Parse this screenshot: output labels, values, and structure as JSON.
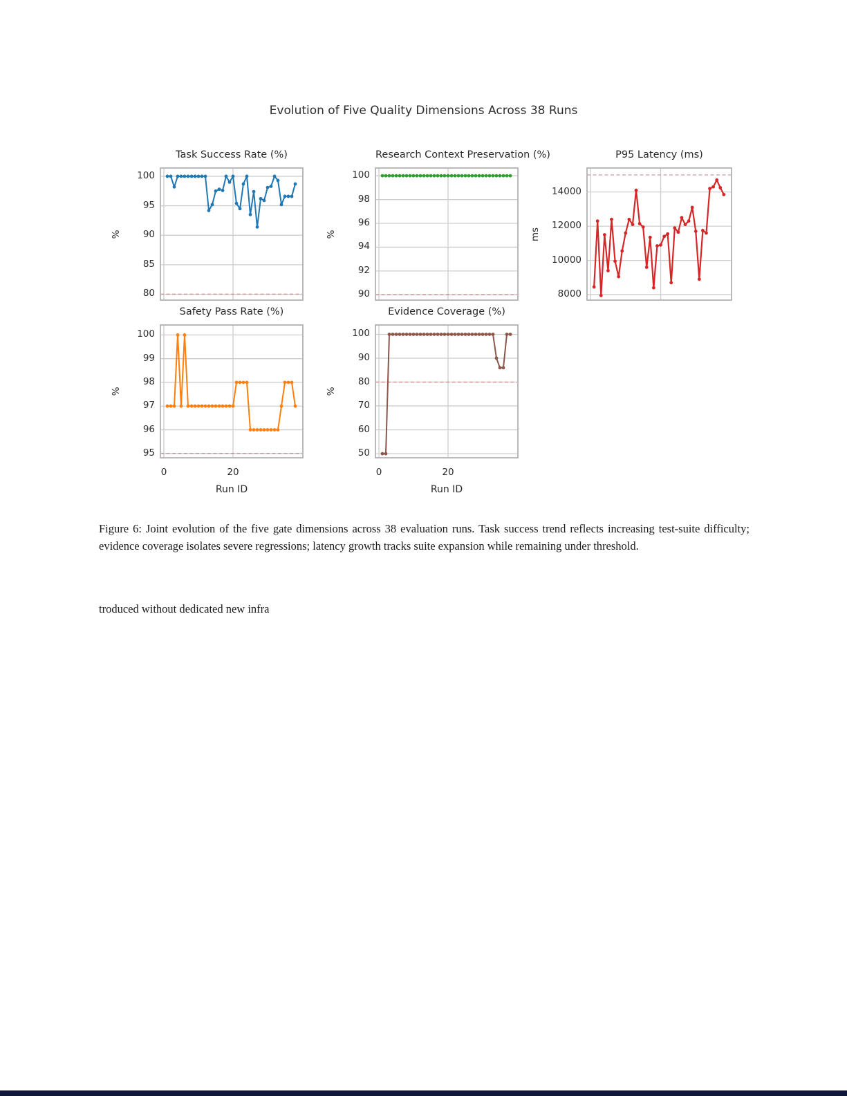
{
  "figure_title": "Evolution of Five Quality Dimensions Across 38 Runs",
  "caption": {
    "text": "Figure 6: Joint evolution of the five gate dimensions across 38 evaluation runs. Task success trend reflects increasing test-suite difficulty; evidence coverage isolates severe regressions; latency growth tracks suite expansion while remaining under threshold."
  },
  "body_fragment": "troduced without dedicated new infra",
  "footer_bar_color": "#10173a",
  "chart_data": [
    {
      "id": "task-success",
      "type": "line",
      "title": "Task Success Rate (%)",
      "ylabel": "%",
      "xlabel": null,
      "color": "#1f77b4",
      "threshold": 80,
      "threshold_color": "#c98b8b",
      "yticks": [
        80,
        85,
        90,
        95,
        100
      ],
      "ylim": [
        79.0,
        101.4
      ],
      "xlim": [
        -1,
        40.2
      ],
      "xgrid": [
        0,
        20
      ],
      "xticks": [],
      "x_start": 1,
      "values": [
        100,
        100,
        98.2,
        100,
        100,
        100,
        100,
        100,
        100,
        100,
        100,
        100,
        94.2,
        95.2,
        97.5,
        97.8,
        97.6,
        100,
        99.0,
        100,
        95.4,
        94.5,
        98.7,
        100,
        93.5,
        97.4,
        91.4,
        96.2,
        95.9,
        98.1,
        98.3,
        100,
        99.3,
        95.2,
        96.6,
        96.6,
        96.6,
        98.7
      ]
    },
    {
      "id": "research-context",
      "type": "line",
      "title": "Research Context Preservation (%)",
      "ylabel": "%",
      "xlabel": null,
      "color": "#2ca02c",
      "threshold": 90,
      "threshold_color": "#c98b8b",
      "yticks": [
        90,
        92,
        94,
        96,
        98,
        100
      ],
      "ylim": [
        89.55,
        100.65
      ],
      "xlim": [
        -1,
        40.2
      ],
      "xgrid": [
        0,
        20
      ],
      "xticks": [],
      "x_start": 1,
      "values": [
        100,
        100,
        100,
        100,
        100,
        100,
        100,
        100,
        100,
        100,
        100,
        100,
        100,
        100,
        100,
        100,
        100,
        100,
        100,
        100,
        100,
        100,
        100,
        100,
        100,
        100,
        100,
        100,
        100,
        100,
        100,
        100,
        100,
        100,
        100,
        100,
        100,
        100
      ]
    },
    {
      "id": "p95-latency",
      "type": "line",
      "title": "P95 Latency (ms)",
      "ylabel": "ms",
      "xlabel": null,
      "color": "#d62728",
      "threshold": 15000,
      "threshold_color": "#c9a0b4",
      "yticks": [
        8000,
        10000,
        12000,
        14000
      ],
      "ylim": [
        7680,
        15400
      ],
      "xlim": [
        -1,
        40.2
      ],
      "xgrid": [
        0,
        20
      ],
      "xticks": [],
      "x_start": 1,
      "values": [
        8450,
        12300,
        7950,
        11500,
        9400,
        12400,
        9950,
        9050,
        10550,
        11600,
        12400,
        12100,
        14100,
        12150,
        11950,
        9600,
        11350,
        8400,
        10850,
        10900,
        11400,
        11550,
        8700,
        11900,
        11650,
        12500,
        12100,
        12300,
        13100,
        11700,
        8900,
        11750,
        11600,
        14200,
        14300,
        14700,
        14250,
        13850
      ]
    },
    {
      "id": "safety-pass",
      "type": "line",
      "title": "Safety Pass Rate (%)",
      "ylabel": "%",
      "xlabel": "Run ID",
      "color": "#ff7f0e",
      "threshold": 95,
      "threshold_color": "#c98b8b",
      "yticks": [
        95,
        96,
        97,
        98,
        99,
        100
      ],
      "ylim": [
        94.82,
        100.42
      ],
      "xlim": [
        -1,
        40.2
      ],
      "xgrid": [
        0,
        20
      ],
      "xticks": [
        0,
        20
      ],
      "x_start": 1,
      "values": [
        97,
        97,
        97,
        100,
        97,
        100,
        97,
        97,
        97,
        97,
        97,
        97,
        97,
        97,
        97,
        97,
        97,
        97,
        97,
        97,
        98,
        98,
        98,
        98,
        96,
        96,
        96,
        96,
        96,
        96,
        96,
        96,
        96,
        97,
        98,
        98,
        98,
        97
      ]
    },
    {
      "id": "evidence-coverage",
      "type": "line",
      "title": "Evidence Coverage (%)",
      "ylabel": "%",
      "xlabel": "Run ID",
      "color": "#8c564b",
      "threshold": 80,
      "threshold_color": "#c98b8b",
      "yticks": [
        50,
        60,
        70,
        80,
        90,
        100
      ],
      "ylim": [
        48.3,
        103.9
      ],
      "xlim": [
        -1,
        40.2
      ],
      "xgrid": [
        0,
        20
      ],
      "xticks": [
        0,
        20
      ],
      "x_start": 1,
      "values": [
        50,
        50,
        100,
        100,
        100,
        100,
        100,
        100,
        100,
        100,
        100,
        100,
        100,
        100,
        100,
        100,
        100,
        100,
        100,
        100,
        100,
        100,
        100,
        100,
        100,
        100,
        100,
        100,
        100,
        100,
        100,
        100,
        100,
        90,
        86,
        86,
        100,
        100
      ]
    }
  ]
}
